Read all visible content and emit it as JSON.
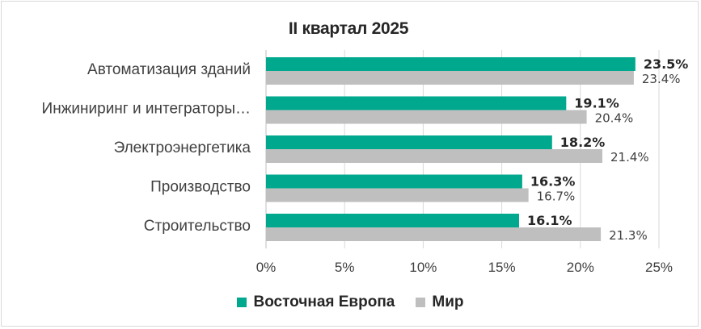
{
  "chart_data": {
    "type": "bar",
    "orientation": "horizontal",
    "title": "II квартал 2025",
    "categories": [
      "Автоматизация зданий",
      "Инжиниринг и интеграторы…",
      "Электроэнергетика",
      "Производство",
      "Строительство"
    ],
    "series": [
      {
        "name": "Восточная Европа",
        "color": "#00a88e",
        "values": [
          23.5,
          19.1,
          18.2,
          16.3,
          16.1
        ],
        "labels": [
          "23.5%",
          "19.1%",
          "18.2%",
          "16.3%",
          "16.1%"
        ]
      },
      {
        "name": "Мир",
        "color": "#bfbfbf",
        "values": [
          23.4,
          20.4,
          21.4,
          16.7,
          21.3
        ],
        "labels": [
          "23.4%",
          "20.4%",
          "21.4%",
          "16.7%",
          "21.3%"
        ]
      }
    ],
    "xlim": [
      0,
      25
    ],
    "xticks": [
      0,
      5,
      10,
      15,
      20,
      25
    ],
    "xtick_labels": [
      "0%",
      "5%",
      "10%",
      "15%",
      "20%",
      "25%"
    ],
    "grid": "vertical",
    "legend_position": "bottom"
  }
}
